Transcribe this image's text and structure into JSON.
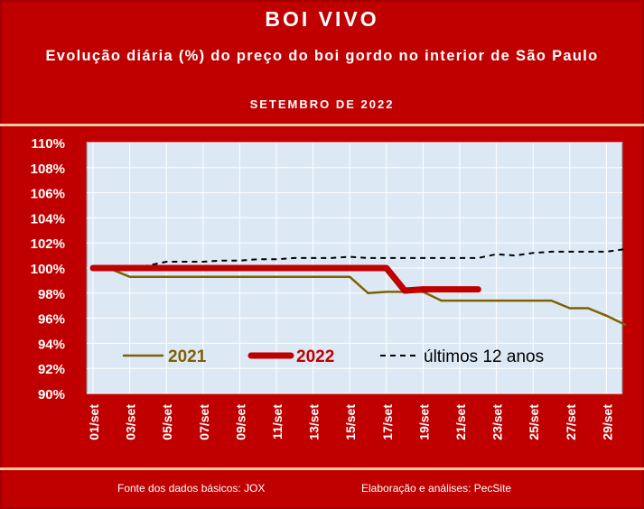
{
  "header": {
    "title": "BOI VIVO",
    "subtitle": "Evolução diária (%) do preço do boi gordo no interior de São Paulo",
    "period": "SETEMBRO DE 2022"
  },
  "footer": {
    "source": "Fonte dos dados básicos: JOX",
    "author": "Elaboração e análises: PecSite"
  },
  "colors": {
    "frame": "#c00000",
    "plot_background": "#dce9f5",
    "series_2021": "#7f6000",
    "series_2022": "#c00000",
    "series_12anos": "#000000"
  },
  "chart_data": {
    "type": "line",
    "title": "BOI VIVO",
    "subtitle": "Evolução diária (%) do preço do boi gordo no interior de São Paulo",
    "xlabel": "",
    "ylabel": "",
    "ylim": [
      90,
      110
    ],
    "xlim": [
      1,
      30
    ],
    "yticks": [
      "110%",
      "108%",
      "106%",
      "104%",
      "102%",
      "100%",
      "98%",
      "96%",
      "94%",
      "92%",
      "90%"
    ],
    "ytick_values": [
      110,
      108,
      106,
      104,
      102,
      100,
      98,
      96,
      94,
      92,
      90
    ],
    "xticks": [
      "01/set",
      "03/set",
      "05/set",
      "07/set",
      "09/set",
      "11/set",
      "13/set",
      "15/set",
      "17/set",
      "19/set",
      "21/set",
      "23/set",
      "25/set",
      "27/set",
      "29/set"
    ],
    "xtick_values": [
      1,
      3,
      5,
      7,
      9,
      11,
      13,
      15,
      17,
      19,
      21,
      23,
      25,
      27,
      29
    ],
    "grid": true,
    "legend": "inside-bottom",
    "series": [
      {
        "name": "2021",
        "color": "#7f6000",
        "x": [
          1,
          2,
          3,
          4,
          5,
          6,
          7,
          8,
          9,
          10,
          11,
          12,
          13,
          14,
          15,
          16,
          17,
          18,
          19,
          20,
          21,
          22,
          23,
          24,
          25,
          26,
          27,
          28,
          29,
          30
        ],
        "y": [
          100,
          99.9,
          99.3,
          99.3,
          99.3,
          99.3,
          99.3,
          99.3,
          99.3,
          99.3,
          99.3,
          99.3,
          99.3,
          99.3,
          99.3,
          98,
          98.1,
          98.1,
          98.1,
          97.4,
          97.4,
          97.4,
          97.4,
          97.4,
          97.4,
          97.4,
          96.8,
          96.8,
          96.2,
          95.5
        ]
      },
      {
        "name": "2022",
        "color": "#c00000",
        "x": [
          1,
          2,
          3,
          4,
          5,
          6,
          7,
          8,
          9,
          10,
          11,
          12,
          13,
          14,
          15,
          16,
          17,
          18,
          19,
          20,
          21,
          22
        ],
        "y": [
          100,
          100,
          100,
          100,
          100,
          100,
          100,
          100,
          100,
          100,
          100,
          100,
          100,
          100,
          100,
          100,
          100,
          98.2,
          98.3,
          98.3,
          98.3,
          98.3
        ]
      },
      {
        "name": "últimos 12 anos",
        "color": "#000000",
        "x": [
          1,
          2,
          3,
          4,
          5,
          6,
          7,
          8,
          9,
          10,
          11,
          12,
          13,
          14,
          15,
          16,
          17,
          18,
          19,
          20,
          21,
          22,
          23,
          24,
          25,
          26,
          27,
          28,
          29,
          30
        ],
        "y": [
          100,
          100,
          100,
          100.2,
          100.5,
          100.5,
          100.5,
          100.6,
          100.6,
          100.7,
          100.7,
          100.8,
          100.8,
          100.8,
          100.9,
          100.8,
          100.8,
          100.8,
          100.8,
          100.8,
          100.8,
          100.8,
          101.1,
          101.0,
          101.2,
          101.3,
          101.3,
          101.3,
          101.3,
          101.5
        ]
      }
    ]
  }
}
